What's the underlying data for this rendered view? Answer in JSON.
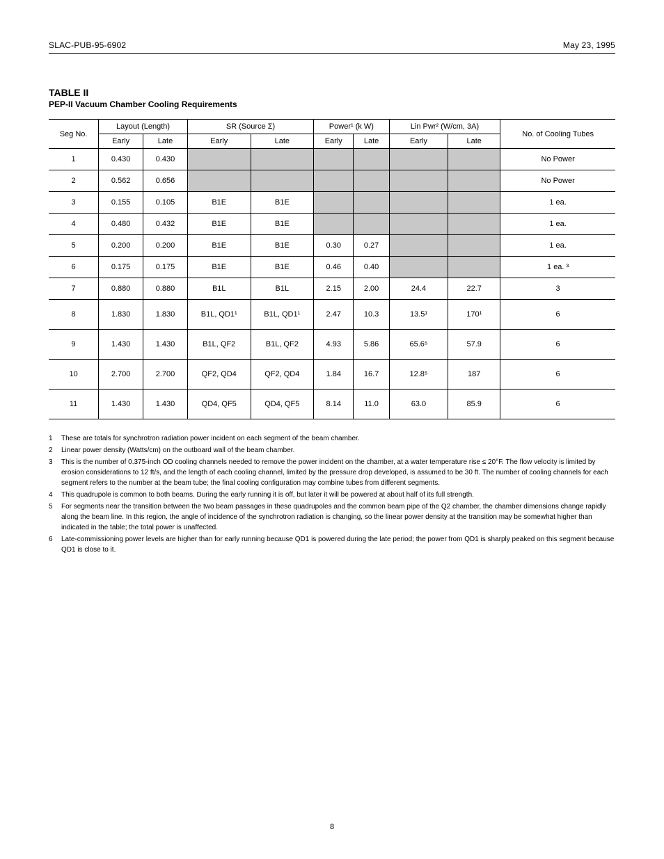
{
  "header": {
    "left": "SLAC-PUB-95-6902",
    "right": "May 23, 1995"
  },
  "table": {
    "title": "TABLE II",
    "subtitle": "PEP-II Vacuum Chamber Cooling Requirements",
    "columns": [
      {
        "id": "seg",
        "label": "Seg No."
      },
      {
        "id": "layout",
        "label": "Layout (Length)",
        "subcols": [
          "Early",
          "Late"
        ]
      },
      {
        "id": "sr",
        "label": "SR (Source Σ)",
        "subcols": [
          "Early",
          "Late"
        ]
      },
      {
        "id": "power",
        "label": "Power¹ (k W)",
        "subcols": [
          "Early",
          "Late"
        ]
      },
      {
        "id": "lin",
        "label": "Lin Pwr² (W/cm, 3A)",
        "subcols": [
          "Early",
          "Late"
        ]
      },
      {
        "id": "tubes",
        "label": "No. of Cooling Tubes"
      }
    ],
    "rows": [
      {
        "seg": "1",
        "layout": [
          "0.430",
          "0.430"
        ],
        "sr": [
          "",
          ""
        ],
        "sr_shade": [
          true,
          true
        ],
        "power": [
          "",
          ""
        ],
        "power_shade": [
          true,
          true
        ],
        "lin": [
          "",
          ""
        ],
        "lin_shade": [
          true,
          true
        ],
        "tubes": "No Power",
        "h": "norm"
      },
      {
        "seg": "2",
        "layout": [
          "0.562",
          "0.656"
        ],
        "sr": [
          "",
          ""
        ],
        "sr_shade": [
          true,
          true
        ],
        "power": [
          "",
          ""
        ],
        "power_shade": [
          true,
          true
        ],
        "lin": [
          "",
          ""
        ],
        "lin_shade": [
          true,
          true
        ],
        "tubes": "No Power",
        "h": "norm"
      },
      {
        "seg": "3",
        "layout": [
          "0.155",
          "0.105"
        ],
        "sr": [
          "B1E",
          "B1E"
        ],
        "sr_shade": [
          false,
          false
        ],
        "power": [
          "",
          ""
        ],
        "power_shade": [
          true,
          true
        ],
        "lin": [
          "",
          ""
        ],
        "lin_shade": [
          true,
          true
        ],
        "tubes": "1 ea.",
        "h": "norm"
      },
      {
        "seg": "4",
        "layout": [
          "0.480",
          "0.432"
        ],
        "sr": [
          "B1E",
          "B1E"
        ],
        "sr_shade": [
          false,
          false
        ],
        "power": [
          "",
          ""
        ],
        "power_shade": [
          true,
          true
        ],
        "lin": [
          "",
          ""
        ],
        "lin_shade": [
          true,
          true
        ],
        "tubes": "1 ea.",
        "h": "norm"
      },
      {
        "seg": "5",
        "layout": [
          "0.200",
          "0.200"
        ],
        "sr": [
          "B1E",
          "B1E"
        ],
        "sr_shade": [
          false,
          false
        ],
        "power": [
          "0.30",
          "0.27"
        ],
        "power_shade": [
          false,
          false
        ],
        "lin": [
          "",
          ""
        ],
        "lin_shade": [
          true,
          true
        ],
        "tubes": "1 ea.",
        "h": "norm"
      },
      {
        "seg": "6",
        "layout": [
          "0.175",
          "0.175"
        ],
        "sr": [
          "B1E",
          "B1E"
        ],
        "sr_shade": [
          false,
          false
        ],
        "power": [
          "0.46",
          "0.40"
        ],
        "power_shade": [
          false,
          false
        ],
        "lin": [
          "",
          ""
        ],
        "lin_shade": [
          true,
          true
        ],
        "tubes": "1 ea. ³",
        "h": "norm"
      },
      {
        "seg": "7",
        "layout": [
          "0.880",
          "0.880"
        ],
        "sr": [
          "B1L",
          "B1L"
        ],
        "sr_shade": [
          false,
          false
        ],
        "power": [
          "2.15",
          "2.00"
        ],
        "power_shade": [
          false,
          false
        ],
        "lin": [
          "24.4",
          "22.7"
        ],
        "lin_shade": [
          false,
          false
        ],
        "tubes": "3",
        "h": "norm"
      },
      {
        "seg": "8",
        "layout": [
          "1.830",
          "1.830"
        ],
        "sr": [
          "B1L, QD1¹",
          "B1L, QD1¹"
        ],
        "sr_shade": [
          false,
          false
        ],
        "power": [
          "2.47",
          "10.3"
        ],
        "power_shade": [
          false,
          false
        ],
        "lin": [
          "13.5¹",
          "170¹"
        ],
        "lin_shade": [
          false,
          false
        ],
        "tubes": "6",
        "h": "tall"
      },
      {
        "seg": "9",
        "layout": [
          "1.430",
          "1.430"
        ],
        "sr": [
          "B1L, QF2",
          "B1L, QF2"
        ],
        "sr_shade": [
          false,
          false
        ],
        "power": [
          "4.93",
          "5.86"
        ],
        "power_shade": [
          false,
          false
        ],
        "lin": [
          "65.6⁵",
          "57.9"
        ],
        "lin_shade": [
          false,
          false
        ],
        "tubes": "6",
        "h": "tall"
      },
      {
        "seg": "10",
        "layout": [
          "2.700",
          "2.700"
        ],
        "sr": [
          "QF2, QD4",
          "QF2, QD4"
        ],
        "sr_shade": [
          false,
          false
        ],
        "power": [
          "1.84",
          "16.7"
        ],
        "power_shade": [
          false,
          false
        ],
        "lin": [
          "12.8⁵",
          "187"
        ],
        "lin_shade": [
          false,
          false
        ],
        "tubes": "6",
        "h": "tall"
      },
      {
        "seg": "11",
        "layout": [
          "1.430",
          "1.430"
        ],
        "sr": [
          "QD4, QF5",
          "QD4, QF5"
        ],
        "sr_shade": [
          false,
          false
        ],
        "power": [
          "8.14",
          "11.0"
        ],
        "power_shade": [
          false,
          false
        ],
        "lin": [
          "63.0",
          "85.9"
        ],
        "lin_shade": [
          false,
          false
        ],
        "tubes": "6",
        "h": "tall"
      }
    ],
    "shaded_color": "#c8c8c8"
  },
  "footnotes": [
    {
      "n": "1",
      "text": "These are totals for synchrotron radiation power incident on each segment of the beam chamber."
    },
    {
      "n": "2",
      "text": "Linear power density (Watts/cm) on the outboard wall of the beam chamber."
    },
    {
      "n": "3",
      "text": "This is the number of 0.375-inch OD cooling channels needed to remove the power incident on the chamber, at a water temperature rise ≤ 20°F. The flow velocity is limited by erosion considerations to 12 ft/s, and the length of each cooling channel, limited by the pressure drop developed, is assumed to be 30 ft. The number of cooling channels for each segment refers to the number at the beam tube; the final cooling configuration may combine tubes from different segments."
    },
    {
      "n": "4",
      "text": "This quadrupole is common to both beams. During the early running it is off, but later it will be powered at about half of its full strength."
    },
    {
      "n": "5",
      "text": "For segments near the transition between the two beam passages in these quadrupoles and the common beam pipe of the Q2 chamber, the chamber dimensions change rapidly along the beam line. In this region, the angle of incidence of the synchrotron radiation is changing, so the linear power density at the transition may be somewhat higher than indicated in the table; the total power is unaffected."
    },
    {
      "n": "6",
      "text": "Late-commissioning power levels are higher than for early running because QD1 is powered during the late period; the power from QD1 is sharply peaked on this segment because QD1 is close to it."
    }
  ],
  "page_number": "8"
}
